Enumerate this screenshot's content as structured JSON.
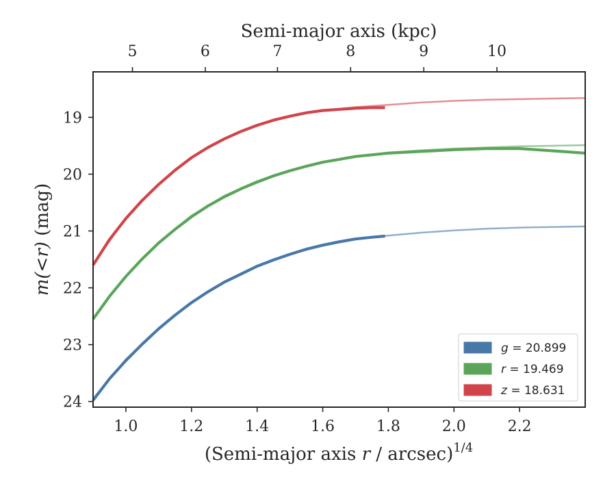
{
  "chart_data": {
    "type": "line",
    "xlabel": "(Semi-major axis r / arcsec)^1/4",
    "xlabel_parts": [
      "(Semi-major axis ",
      "r",
      " / arcsec)",
      "1/4"
    ],
    "ylabel": "m(<r) (mag)",
    "ylabel_parts": [
      "m",
      "(<",
      "r",
      ")",
      " (mag)"
    ],
    "x2label": "Semi-major axis (kpc)",
    "xlim": [
      0.9,
      2.4
    ],
    "ylim": [
      24.1,
      18.2
    ],
    "y_inverted": true,
    "xticks": [
      1.0,
      1.2,
      1.4,
      1.6,
      1.8,
      2.0,
      2.2
    ],
    "xtick_labels": [
      "1.0",
      "1.2",
      "1.4",
      "1.6",
      "1.8",
      "2.0",
      "2.2"
    ],
    "yticks": [
      19,
      20,
      21,
      22,
      23,
      24
    ],
    "ytick_labels": [
      "19",
      "20",
      "21",
      "22",
      "23",
      "24"
    ],
    "x2ticks_kpc": [
      5,
      6,
      7,
      8,
      9,
      10
    ],
    "x2tick_labels": [
      "5",
      "6",
      "7",
      "8",
      "9",
      "10"
    ],
    "x2_tick_positions_x": [
      1.02,
      1.242,
      1.462,
      1.685,
      1.908,
      2.131
    ],
    "grid": false,
    "legend_position": "bottom-right",
    "series": [
      {
        "name": "g = 20.899",
        "legend_var": "g",
        "legend_value": "= 20.899",
        "color": "#4878a8",
        "observed": {
          "x": [
            0.9,
            0.95,
            1.0,
            1.05,
            1.1,
            1.15,
            1.2,
            1.25,
            1.3,
            1.35,
            1.4,
            1.45,
            1.5,
            1.55,
            1.6,
            1.65,
            1.7,
            1.75,
            1.79
          ],
          "y": [
            23.98,
            23.6,
            23.28,
            22.99,
            22.72,
            22.48,
            22.26,
            22.07,
            21.9,
            21.76,
            21.62,
            21.51,
            21.41,
            21.32,
            21.25,
            21.19,
            21.14,
            21.11,
            21.09
          ]
        },
        "model": {
          "x": [
            0.9,
            1.0,
            1.1,
            1.2,
            1.3,
            1.4,
            1.5,
            1.6,
            1.7,
            1.8,
            1.9,
            2.0,
            2.1,
            2.2,
            2.3,
            2.4
          ],
          "y": [
            23.95,
            23.26,
            22.71,
            22.26,
            21.89,
            21.62,
            21.41,
            21.26,
            21.15,
            21.08,
            21.03,
            20.99,
            20.96,
            20.94,
            20.93,
            20.92
          ]
        }
      },
      {
        "name": "r = 19.469",
        "legend_var": "r",
        "legend_value": "= 19.469",
        "color": "#5aa55a",
        "observed": {
          "x": [
            0.9,
            0.95,
            1.0,
            1.05,
            1.1,
            1.15,
            1.2,
            1.25,
            1.3,
            1.35,
            1.4,
            1.45,
            1.5,
            1.55,
            1.6,
            1.65,
            1.7,
            1.8,
            1.9,
            2.0,
            2.1,
            2.2,
            2.3,
            2.4
          ],
          "y": [
            22.55,
            22.15,
            21.8,
            21.49,
            21.21,
            20.97,
            20.75,
            20.56,
            20.4,
            20.26,
            20.14,
            20.03,
            19.94,
            19.86,
            19.79,
            19.74,
            19.69,
            19.63,
            19.6,
            19.57,
            19.55,
            19.55,
            19.59,
            19.63
          ]
        },
        "model": {
          "x": [
            0.9,
            1.0,
            1.1,
            1.2,
            1.3,
            1.4,
            1.5,
            1.6,
            1.7,
            1.8,
            1.9,
            2.0,
            2.1,
            2.2,
            2.3,
            2.4
          ],
          "y": [
            22.53,
            21.79,
            21.2,
            20.73,
            20.38,
            20.12,
            19.93,
            19.79,
            19.69,
            19.62,
            19.58,
            19.55,
            19.53,
            19.51,
            19.5,
            19.49
          ]
        }
      },
      {
        "name": "z = 18.631",
        "legend_var": "z",
        "legend_value": "= 18.631",
        "color": "#d0444a",
        "observed": {
          "x": [
            0.9,
            0.95,
            1.0,
            1.05,
            1.1,
            1.15,
            1.2,
            1.25,
            1.3,
            1.35,
            1.4,
            1.45,
            1.5,
            1.55,
            1.6,
            1.65,
            1.7,
            1.75,
            1.79
          ],
          "y": [
            21.6,
            21.15,
            20.78,
            20.46,
            20.18,
            19.93,
            19.71,
            19.53,
            19.38,
            19.25,
            19.14,
            19.05,
            18.98,
            18.92,
            18.88,
            18.86,
            18.84,
            18.83,
            18.83
          ]
        },
        "model": {
          "x": [
            0.9,
            1.0,
            1.1,
            1.2,
            1.3,
            1.4,
            1.5,
            1.6,
            1.7,
            1.8,
            1.9,
            2.0,
            2.1,
            2.2,
            2.3,
            2.4
          ],
          "y": [
            21.58,
            20.78,
            20.17,
            19.71,
            19.38,
            19.14,
            18.98,
            18.88,
            18.82,
            18.78,
            18.74,
            18.71,
            18.69,
            18.68,
            18.67,
            18.66
          ]
        }
      }
    ]
  }
}
